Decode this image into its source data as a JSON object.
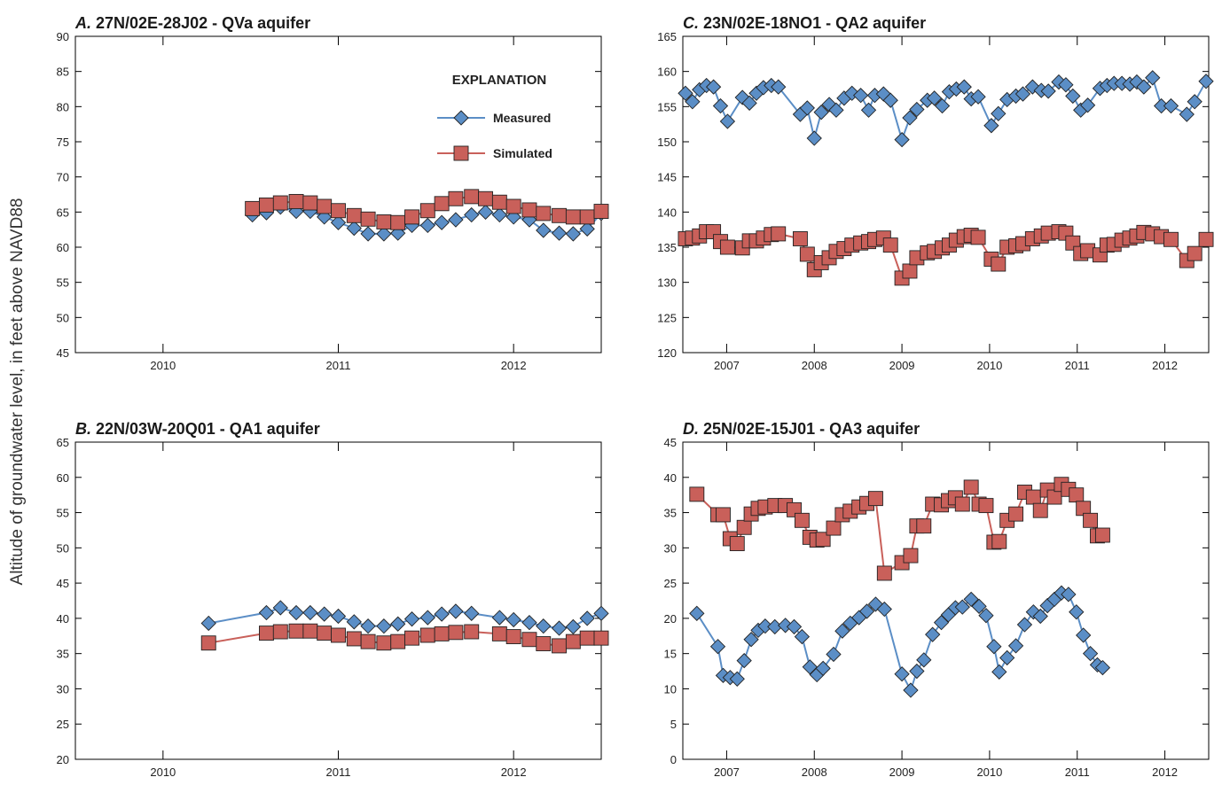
{
  "ylabel": "Altitude of groundwater level, in feet above NAVD88",
  "colors": {
    "measured_fill": "#5b8ec6",
    "measured_line": "#5b8ec6",
    "simulated_fill": "#c9605a",
    "simulated_line": "#c9605a",
    "axis": "#000000"
  },
  "legend": {
    "title": "EXPLANATION",
    "measured_label": "Measured",
    "simulated_label": "Simulated"
  },
  "chart_data": [
    {
      "id": "A",
      "type": "line",
      "letter": "A.",
      "title": "27N/02E-28J02 - QVa aquifer",
      "xlim": [
        2009.5,
        2012.5
      ],
      "ylim": [
        45,
        90
      ],
      "yticks": [
        45,
        50,
        55,
        60,
        65,
        70,
        75,
        80,
        85,
        90
      ],
      "year_labels": [
        "2010",
        "2011",
        "2012"
      ],
      "series": [
        {
          "name": "Measured",
          "x": [
            2010.51,
            2010.59,
            2010.67,
            2010.76,
            2010.84,
            2010.92,
            2011.0,
            2011.09,
            2011.17,
            2011.26,
            2011.34,
            2011.42,
            2011.51,
            2011.59,
            2011.67,
            2011.76,
            2011.84,
            2011.92,
            2012.0,
            2012.09,
            2012.17,
            2012.26,
            2012.34,
            2012.42,
            2012.5
          ],
          "y": [
            64.6,
            64.9,
            65.7,
            65.1,
            65.1,
            64.3,
            63.5,
            62.7,
            61.9,
            61.9,
            62.0,
            63.1,
            63.1,
            63.5,
            63.9,
            64.6,
            65.0,
            64.6,
            64.3,
            63.9,
            62.4,
            62.0,
            61.9,
            62.6,
            64.8
          ]
        },
        {
          "name": "Simulated",
          "x": [
            2010.51,
            2010.59,
            2010.67,
            2010.76,
            2010.84,
            2010.92,
            2011.0,
            2011.09,
            2011.17,
            2011.26,
            2011.34,
            2011.42,
            2011.51,
            2011.59,
            2011.67,
            2011.76,
            2011.84,
            2011.92,
            2012.0,
            2012.09,
            2012.17,
            2012.26,
            2012.34,
            2012.42,
            2012.5
          ],
          "y": [
            65.5,
            66.0,
            66.3,
            66.5,
            66.3,
            65.8,
            65.2,
            64.5,
            64.0,
            63.6,
            63.5,
            64.3,
            65.2,
            66.2,
            66.9,
            67.2,
            66.9,
            66.4,
            65.8,
            65.3,
            64.8,
            64.5,
            64.3,
            64.3,
            65.1
          ]
        }
      ]
    },
    {
      "id": "B",
      "type": "line",
      "letter": "B.",
      "title": "22N/03W-20Q01 - QA1 aquifer",
      "xlim": [
        2009.5,
        2012.5
      ],
      "ylim": [
        20,
        65
      ],
      "yticks": [
        20,
        25,
        30,
        35,
        40,
        45,
        50,
        55,
        60,
        65
      ],
      "year_labels": [
        "2010",
        "2011",
        "2012"
      ],
      "series": [
        {
          "name": "Measured",
          "x": [
            2010.26,
            2010.59,
            2010.67,
            2010.76,
            2010.84,
            2010.92,
            2011.0,
            2011.09,
            2011.17,
            2011.26,
            2011.34,
            2011.42,
            2011.51,
            2011.59,
            2011.67,
            2011.76,
            2011.92,
            2012.0,
            2012.09,
            2012.17,
            2012.26,
            2012.34,
            2012.42,
            2012.5
          ],
          "y": [
            39.3,
            40.8,
            41.5,
            40.8,
            40.8,
            40.6,
            40.3,
            39.5,
            38.9,
            38.9,
            39.2,
            39.9,
            40.1,
            40.6,
            41.0,
            40.7,
            40.1,
            39.8,
            39.4,
            38.9,
            38.6,
            38.8,
            40.0,
            40.7
          ]
        },
        {
          "name": "Simulated",
          "x": [
            2010.26,
            2010.59,
            2010.67,
            2010.76,
            2010.84,
            2010.92,
            2011.0,
            2011.09,
            2011.17,
            2011.26,
            2011.34,
            2011.42,
            2011.51,
            2011.59,
            2011.67,
            2011.76,
            2011.92,
            2012.0,
            2012.09,
            2012.17,
            2012.26,
            2012.34,
            2012.42,
            2012.5
          ],
          "y": [
            36.5,
            37.9,
            38.1,
            38.2,
            38.2,
            37.9,
            37.6,
            37.1,
            36.7,
            36.5,
            36.7,
            37.2,
            37.6,
            37.8,
            38.0,
            38.1,
            37.8,
            37.4,
            37.0,
            36.4,
            36.1,
            36.7,
            37.2,
            37.2
          ]
        }
      ]
    },
    {
      "id": "C",
      "type": "line",
      "letter": "C.",
      "title": "23N/02E-18NO1 - QA2 aquifer",
      "xlim": [
        2006.5,
        2012.5
      ],
      "ylim": [
        120,
        165
      ],
      "yticks": [
        120,
        125,
        130,
        135,
        140,
        145,
        150,
        155,
        160,
        165
      ],
      "year_labels": [
        "2007",
        "2008",
        "2009",
        "2010",
        "2011",
        "2012"
      ],
      "series": [
        {
          "name": "Measured",
          "x": [
            2006.53,
            2006.61,
            2006.69,
            2006.77,
            2006.85,
            2006.93,
            2007.01,
            2007.18,
            2007.26,
            2007.34,
            2007.42,
            2007.51,
            2007.59,
            2007.84,
            2007.92,
            2008.0,
            2008.08,
            2008.17,
            2008.25,
            2008.34,
            2008.43,
            2008.53,
            2008.62,
            2008.69,
            2008.79,
            2008.87,
            2009.0,
            2009.09,
            2009.17,
            2009.29,
            2009.37,
            2009.46,
            2009.54,
            2009.62,
            2009.71,
            2009.79,
            2009.87,
            2010.02,
            2010.1,
            2010.2,
            2010.3,
            2010.38,
            2010.49,
            2010.59,
            2010.67,
            2010.79,
            2010.87,
            2010.95,
            2011.04,
            2011.12,
            2011.26,
            2011.34,
            2011.42,
            2011.51,
            2011.6,
            2011.68,
            2011.76,
            2011.86,
            2011.96,
            2012.07,
            2012.25,
            2012.34,
            2012.47
          ],
          "y": [
            156.9,
            155.7,
            157.4,
            158.0,
            157.8,
            155.1,
            152.9,
            156.3,
            155.5,
            156.9,
            157.7,
            158.0,
            157.8,
            153.9,
            154.8,
            150.5,
            154.2,
            155.3,
            154.5,
            156.2,
            156.9,
            156.6,
            154.5,
            156.6,
            156.8,
            155.9,
            150.3,
            153.4,
            154.6,
            155.9,
            156.2,
            155.1,
            157.1,
            157.5,
            157.8,
            156.1,
            156.4,
            152.3,
            154.0,
            156.0,
            156.5,
            156.8,
            157.8,
            157.3,
            157.2,
            158.5,
            158.1,
            156.5,
            154.5,
            155.2,
            157.6,
            158.0,
            158.3,
            158.3,
            158.2,
            158.5,
            157.8,
            159.1,
            155.1,
            155.1,
            153.9,
            155.7,
            158.6
          ]
        },
        {
          "name": "Simulated",
          "x": [
            2006.53,
            2006.61,
            2006.69,
            2006.77,
            2006.85,
            2006.93,
            2007.01,
            2007.18,
            2007.26,
            2007.34,
            2007.42,
            2007.51,
            2007.59,
            2007.84,
            2007.92,
            2008.0,
            2008.08,
            2008.17,
            2008.25,
            2008.34,
            2008.43,
            2008.53,
            2008.62,
            2008.69,
            2008.79,
            2008.87,
            2009.0,
            2009.09,
            2009.17,
            2009.29,
            2009.37,
            2009.46,
            2009.54,
            2009.62,
            2009.71,
            2009.79,
            2009.87,
            2010.02,
            2010.1,
            2010.2,
            2010.3,
            2010.38,
            2010.49,
            2010.59,
            2010.67,
            2010.79,
            2010.87,
            2010.95,
            2011.04,
            2011.12,
            2011.26,
            2011.34,
            2011.42,
            2011.51,
            2011.6,
            2011.68,
            2011.76,
            2011.86,
            2011.96,
            2012.07,
            2012.25,
            2012.34,
            2012.47
          ],
          "y": [
            136.2,
            136.3,
            136.6,
            137.2,
            137.2,
            135.8,
            135.0,
            134.9,
            135.9,
            135.9,
            136.3,
            136.8,
            136.9,
            136.2,
            134.0,
            131.8,
            132.8,
            133.5,
            134.4,
            134.8,
            135.3,
            135.6,
            135.8,
            136.1,
            136.3,
            135.3,
            130.6,
            131.6,
            133.5,
            134.2,
            134.4,
            134.9,
            135.3,
            136.0,
            136.5,
            136.7,
            136.4,
            133.3,
            132.6,
            135.0,
            135.2,
            135.5,
            136.2,
            136.6,
            137.0,
            137.2,
            137.0,
            135.6,
            134.1,
            134.5,
            133.9,
            135.3,
            135.4,
            136.0,
            136.3,
            136.6,
            137.1,
            136.9,
            136.5,
            136.1,
            133.1,
            134.1,
            136.1
          ]
        }
      ]
    },
    {
      "id": "D",
      "type": "line",
      "letter": "D.",
      "title": "25N/02E-15J01 - QA3 aquifer",
      "xlim": [
        2006.5,
        2012.5
      ],
      "ylim": [
        0,
        45
      ],
      "yticks": [
        0,
        5,
        10,
        15,
        20,
        25,
        30,
        35,
        40,
        45
      ],
      "year_labels": [
        "2007",
        "2008",
        "2009",
        "2010",
        "2011",
        "2012"
      ],
      "series": [
        {
          "name": "Measured",
          "x": [
            2006.66,
            2006.9,
            2006.96,
            2007.04,
            2007.12,
            2007.2,
            2007.28,
            2007.36,
            2007.44,
            2007.55,
            2007.67,
            2007.77,
            2007.86,
            2007.95,
            2008.03,
            2008.1,
            2008.22,
            2008.32,
            2008.41,
            2008.51,
            2008.6,
            2008.7,
            2008.8,
            2009.0,
            2009.1,
            2009.17,
            2009.25,
            2009.35,
            2009.45,
            2009.53,
            2009.61,
            2009.69,
            2009.79,
            2009.88,
            2009.96,
            2010.05,
            2010.11,
            2010.2,
            2010.3,
            2010.4,
            2010.5,
            2010.58,
            2010.66,
            2010.74,
            2010.82,
            2010.9,
            2010.99,
            2011.07,
            2011.15,
            2011.23,
            2011.29
          ],
          "y": [
            20.7,
            16.0,
            11.9,
            11.6,
            11.4,
            14.0,
            17.0,
            18.3,
            18.9,
            18.8,
            19.0,
            18.8,
            17.4,
            13.1,
            12.0,
            12.9,
            14.9,
            18.2,
            19.3,
            20.1,
            21.0,
            22.0,
            21.3,
            12.1,
            9.8,
            12.5,
            14.1,
            17.7,
            19.4,
            20.5,
            21.5,
            21.6,
            22.7,
            21.7,
            20.4,
            16.0,
            12.4,
            14.4,
            16.1,
            19.1,
            20.9,
            20.3,
            21.8,
            22.7,
            23.6,
            23.4,
            20.9,
            17.6,
            15.0,
            13.4,
            13.0
          ]
        },
        {
          "name": "Simulated",
          "x": [
            2006.66,
            2006.9,
            2006.96,
            2007.04,
            2007.12,
            2007.2,
            2007.28,
            2007.36,
            2007.44,
            2007.55,
            2007.67,
            2007.77,
            2007.86,
            2007.95,
            2008.03,
            2008.1,
            2008.22,
            2008.32,
            2008.41,
            2008.51,
            2008.6,
            2008.7,
            2008.8,
            2009.0,
            2009.1,
            2009.17,
            2009.25,
            2009.35,
            2009.45,
            2009.53,
            2009.61,
            2009.69,
            2009.79,
            2009.88,
            2009.96,
            2010.05,
            2010.11,
            2010.2,
            2010.3,
            2010.4,
            2010.5,
            2010.58,
            2010.66,
            2010.74,
            2010.82,
            2010.9,
            2010.99,
            2011.07,
            2011.15,
            2011.23,
            2011.29
          ],
          "y": [
            37.6,
            34.7,
            34.7,
            31.3,
            30.6,
            32.9,
            34.8,
            35.6,
            35.8,
            36.0,
            36.0,
            35.4,
            33.9,
            31.5,
            31.1,
            31.2,
            32.8,
            34.7,
            35.2,
            35.8,
            36.3,
            37.0,
            26.4,
            27.9,
            28.9,
            33.1,
            33.1,
            36.2,
            36.1,
            36.7,
            37.1,
            36.2,
            38.6,
            36.2,
            36.0,
            30.8,
            30.9,
            33.9,
            34.8,
            37.9,
            37.2,
            35.3,
            38.2,
            37.2,
            39.0,
            38.3,
            37.5,
            35.6,
            33.9,
            31.7,
            31.8
          ]
        }
      ]
    }
  ]
}
